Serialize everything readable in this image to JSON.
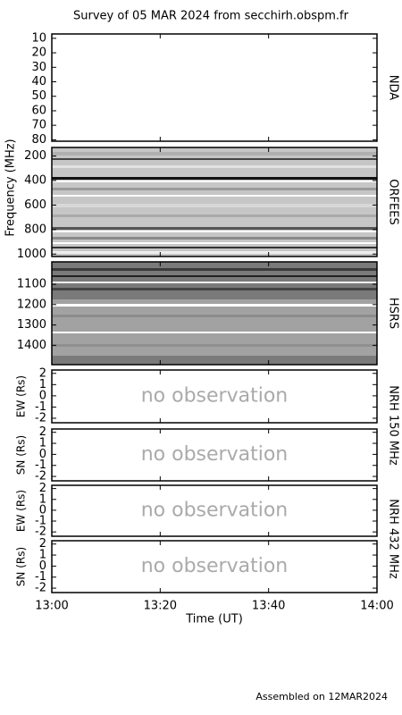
{
  "chart_data": {
    "type": "spectral-survey",
    "title": "Survey of 05 MAR 2024 from secchirh.obspm.fr",
    "xlabel": "Time (UT)",
    "ylabel": "Frequency (MHz)",
    "xlim": [
      780,
      840
    ],
    "xticks": [
      {
        "value": 780,
        "label": "13:00"
      },
      {
        "value": 800,
        "label": "13:20"
      },
      {
        "value": 820,
        "label": "13:40"
      },
      {
        "value": 840,
        "label": "14:00"
      }
    ],
    "panels": [
      {
        "name": "NDA",
        "ylim": [
          81,
          7
        ],
        "yticks": [
          10,
          20,
          30,
          40,
          50,
          60,
          70,
          80
        ]
      },
      {
        "name": "ORFEES",
        "ylim": [
          1020,
          130
        ],
        "yticks": [
          200,
          400,
          600,
          800,
          1000
        ]
      },
      {
        "name": "HSRS",
        "ylim": [
          1495,
          990
        ],
        "yticks": [
          1100,
          1200,
          1300,
          1400
        ]
      },
      {
        "ylabel": "EW (Rs)",
        "ylim": [
          -2.4,
          2.3
        ],
        "yticks": [
          2,
          1,
          0,
          -1,
          -2
        ],
        "annotation": "no observation"
      },
      {
        "ylabel": "SN (Rs)",
        "ylim": [
          -2.4,
          2.3
        ],
        "yticks": [
          2,
          1,
          0,
          -1,
          -2
        ],
        "annotation": "no observation"
      },
      {
        "ylabel": "EW (Rs)",
        "ylim": [
          -2.4,
          2.3
        ],
        "yticks": [
          2,
          1,
          0,
          -1,
          -2
        ],
        "annotation": "no observation"
      },
      {
        "ylabel": "SN (Rs)",
        "ylim": [
          -2.4,
          2.3
        ],
        "yticks": [
          2,
          1,
          0,
          -1,
          -2
        ],
        "annotation": "no observation"
      }
    ],
    "instrument_labels": [
      "NRH 150 MHz",
      "NRH 432 MHz"
    ],
    "footer": "Assembled on 12MAR2024"
  }
}
